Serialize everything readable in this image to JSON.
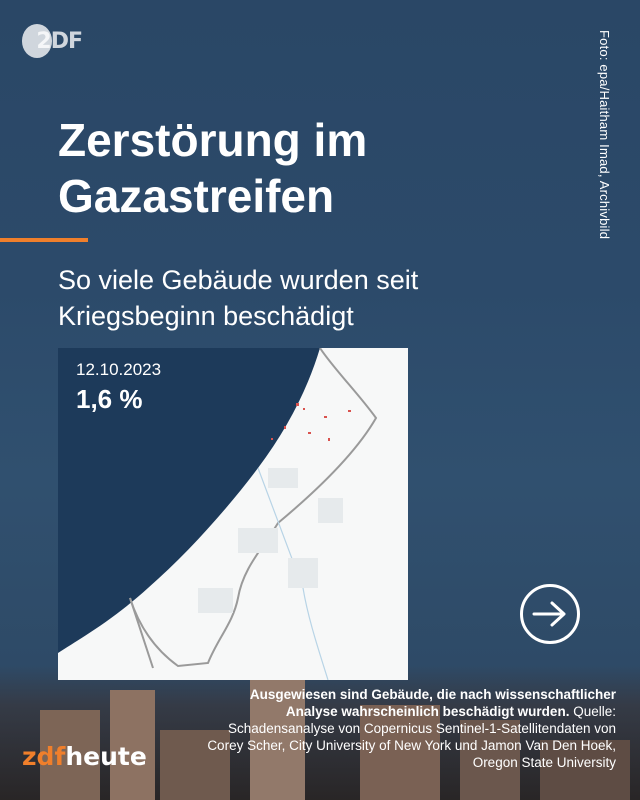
{
  "logo": {
    "text": "2DF"
  },
  "photo_credit": "Foto: epa/Haitham Imad, Archivbild",
  "title": "Zerstörung im Gazastreifen",
  "subtitle": "So viele Gebäude wurden seit Kriegsbeginn beschädigt",
  "map": {
    "date": "12.10.2023",
    "value": "1,6 %",
    "damaged_share_percent": 1.6
  },
  "note": {
    "bold": "Ausgewiesen sind Gebäude, die nach wissenschaftlicher Analyse wahrscheinlich beschädigt wurden.",
    "source": "Quelle: Schadensanalyse von Copernicus Sentinel-1-Satellitendaten von Corey Scher, City University of New York und Jamon Van Den Hoek, Oregon State University"
  },
  "brand": {
    "zdf": "zdf",
    "heute": "heute"
  },
  "colors": {
    "accent": "#f07f2b",
    "sea": "#1d3a5a",
    "damage": "#d9534f"
  },
  "icons": {
    "next": "arrow-right-circle-icon"
  }
}
